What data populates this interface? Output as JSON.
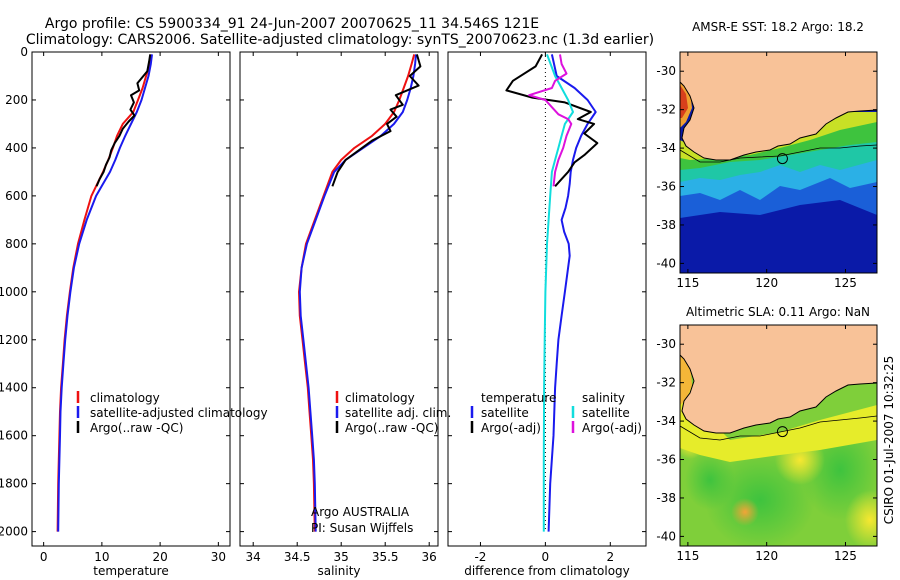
{
  "header": {
    "line1": "Argo profile: CS 5900334_91 24-Jun-2007 20070625_11 34.546S 121E",
    "line2": "Climatology: CARS2006. Satellite-adjusted climatology: synTS_20070623.nc (1.3d earlier)"
  },
  "credit": "CSIRO 01-Jul-2007 10:32:25",
  "colors": {
    "climatology": "#ee1111",
    "satellite": "#1a1aee",
    "argo": "#000000",
    "sal_satellite": "#11dddd",
    "sal_argo": "#dd11dd",
    "land": "#f8c298"
  },
  "chart_data": [
    {
      "type": "line",
      "name": "temperature-profile",
      "xlabel": "temperature",
      "ylabel": "",
      "xlim": [
        -2,
        32
      ],
      "ylim": [
        2060,
        0
      ],
      "xticks": [
        0,
        10,
        20,
        30
      ],
      "yticks": [
        0,
        200,
        400,
        600,
        800,
        1000,
        1200,
        1400,
        1600,
        1800,
        2000
      ],
      "legend": {
        "position": "lower-right",
        "entries": [
          "climatology",
          "satellite-adjusted climatology",
          "Argo(..raw -QC)"
        ]
      },
      "series": [
        {
          "name": "climatology",
          "color": "#ee1111",
          "x": [
            18.4,
            18.2,
            17.6,
            17.0,
            16.2,
            15.4,
            13.6,
            12.6,
            11.9,
            11.1,
            10.2,
            9.2,
            8.2,
            7.0,
            5.9,
            5.1,
            4.5,
            4.0,
            3.6,
            3.3,
            3.0,
            2.8,
            2.7,
            2.6,
            2.5,
            2.4
          ],
          "y": [
            10,
            50,
            100,
            150,
            200,
            250,
            300,
            350,
            400,
            450,
            500,
            550,
            600,
            700,
            800,
            900,
            1000,
            1100,
            1200,
            1300,
            1400,
            1500,
            1600,
            1700,
            1800,
            2000
          ]
        },
        {
          "name": "satellite-adjusted climatology",
          "color": "#1a1aee",
          "x": [
            18.6,
            18.4,
            18.0,
            17.4,
            16.8,
            16.0,
            15.0,
            14.0,
            13.1,
            12.3,
            11.4,
            10.2,
            9.0,
            7.4,
            6.1,
            5.2,
            4.6,
            4.1,
            3.7,
            3.4,
            3.1,
            2.9,
            2.8,
            2.7,
            2.6,
            2.5
          ],
          "y": [
            10,
            50,
            100,
            150,
            200,
            250,
            300,
            350,
            400,
            450,
            500,
            550,
            600,
            700,
            800,
            900,
            1000,
            1100,
            1200,
            1300,
            1400,
            1500,
            1600,
            1700,
            1800,
            2000
          ]
        },
        {
          "name": "Argo(..raw -QC)",
          "color": "#000000",
          "x": [
            18.3,
            18.1,
            17.8,
            16.1,
            16.4,
            15.0,
            15.5,
            14.9,
            15.6,
            14.6,
            13.6,
            13.0,
            12.2,
            11.6,
            11.3,
            10.7,
            10.3,
            9.6,
            9.1
          ],
          "y": [
            10,
            40,
            80,
            130,
            160,
            180,
            210,
            240,
            265,
            290,
            320,
            350,
            380,
            410,
            440,
            470,
            500,
            530,
            560
          ]
        }
      ]
    },
    {
      "type": "line",
      "name": "salinity-profile",
      "xlabel": "salinity",
      "ylabel": "",
      "xlim": [
        33.85,
        36.1
      ],
      "ylim": [
        2060,
        0
      ],
      "xticks": [
        34,
        34.5,
        35,
        35.5,
        36
      ],
      "xtick_labels": [
        "34",
        "34.5",
        "35",
        "35.5",
        "36"
      ],
      "legend": {
        "position": "lower-right",
        "entries": [
          "climatology",
          "satellite adj. clim.",
          "Argo(..raw -QC)"
        ]
      },
      "annotation": [
        "Argo AUSTRALIA",
        "PI: Susan Wijffels"
      ],
      "series": [
        {
          "name": "climatology",
          "color": "#ee1111",
          "x": [
            35.83,
            35.8,
            35.76,
            35.71,
            35.66,
            35.6,
            35.5,
            35.35,
            35.15,
            35.0,
            34.9,
            34.8,
            34.7,
            34.6,
            34.55,
            34.52,
            34.53,
            34.56,
            34.59,
            34.62,
            34.64,
            34.66,
            34.68,
            34.69,
            34.7
          ],
          "y": [
            10,
            50,
            100,
            150,
            200,
            250,
            300,
            350,
            400,
            450,
            500,
            600,
            700,
            800,
            900,
            1000,
            1100,
            1200,
            1300,
            1400,
            1500,
            1600,
            1700,
            1800,
            2000
          ]
        },
        {
          "name": "satellite adj. clim.",
          "color": "#1a1aee",
          "x": [
            35.85,
            35.84,
            35.82,
            35.79,
            35.75,
            35.7,
            35.6,
            35.45,
            35.25,
            35.05,
            34.92,
            34.81,
            34.71,
            34.61,
            34.55,
            34.53,
            34.54,
            34.57,
            34.6,
            34.63,
            34.65,
            34.67,
            34.69,
            34.7,
            34.71
          ],
          "y": [
            10,
            50,
            100,
            150,
            200,
            250,
            300,
            350,
            400,
            450,
            500,
            600,
            700,
            800,
            900,
            1000,
            1100,
            1200,
            1300,
            1400,
            1500,
            1600,
            1700,
            1800,
            2000
          ]
        },
        {
          "name": "Argo(..raw -QC)",
          "color": "#000000",
          "x": [
            35.86,
            35.9,
            35.78,
            35.88,
            35.62,
            35.7,
            35.56,
            35.63,
            35.52,
            35.56,
            35.35,
            35.2,
            35.05,
            34.96,
            34.9
          ],
          "y": [
            10,
            60,
            100,
            140,
            180,
            220,
            240,
            270,
            300,
            330,
            370,
            410,
            450,
            500,
            560
          ]
        }
      ]
    },
    {
      "type": "line",
      "name": "difference-profile",
      "xlabel": "difference from climatology",
      "ylabel": "",
      "xlim": [
        -3,
        3.1
      ],
      "ylim": [
        2060,
        0
      ],
      "xticks": [
        -2,
        0,
        2
      ],
      "legend": {
        "position": "lower-center",
        "columns": [
          {
            "title": "temperature",
            "entries": [
              "satellite",
              "Argo(-adj)"
            ]
          },
          {
            "title": "salinity",
            "entries": [
              "satellite",
              "Argo(-adj)"
            ]
          }
        ]
      },
      "series": [
        {
          "name": "temperature satellite",
          "color": "#1a1aee",
          "x": [
            0.2,
            0.35,
            0.9,
            1.3,
            1.55,
            1.3,
            1.1,
            0.95,
            0.85,
            0.78,
            0.75,
            0.7,
            0.62,
            0.5,
            0.58,
            0.72,
            0.75,
            0.7,
            0.6,
            0.5,
            0.4,
            0.35,
            0.3,
            0.25,
            0.15,
            0.1
          ],
          "y": [
            10,
            100,
            150,
            200,
            250,
            300,
            350,
            400,
            450,
            500,
            550,
            600,
            650,
            700,
            750,
            800,
            850,
            900,
            1000,
            1100,
            1200,
            1300,
            1400,
            1600,
            1800,
            2000
          ]
        },
        {
          "name": "temperature Argo(-adj)",
          "color": "#000000",
          "x": [
            -0.1,
            -0.3,
            -1.0,
            -1.2,
            -0.4,
            0.6,
            1.4,
            1.0,
            1.5,
            1.2,
            1.6,
            1.2,
            0.9,
            0.7,
            0.5,
            0.3
          ],
          "y": [
            10,
            60,
            120,
            160,
            190,
            210,
            250,
            280,
            300,
            340,
            380,
            430,
            460,
            500,
            530,
            560
          ]
        },
        {
          "name": "salinity satellite",
          "color": "#11dddd",
          "x": [
            0.05,
            0.3,
            0.5,
            0.7,
            0.85,
            0.6,
            0.5,
            0.4,
            0.3,
            0.2,
            0.15,
            0.1,
            0.05,
            0.0,
            -0.02,
            -0.04,
            -0.05,
            -0.05
          ],
          "y": [
            10,
            100,
            150,
            200,
            250,
            300,
            350,
            400,
            450,
            500,
            600,
            700,
            800,
            1000,
            1200,
            1400,
            1700,
            2000
          ]
        },
        {
          "name": "salinity Argo(-adj)",
          "color": "#dd11dd",
          "x": [
            0.45,
            0.5,
            0.65,
            0.3,
            0.2,
            -0.5,
            0.0,
            0.2,
            0.4,
            0.7,
            0.8,
            0.65,
            0.55,
            0.4,
            0.3,
            0.25
          ],
          "y": [
            10,
            50,
            90,
            120,
            150,
            180,
            200,
            230,
            260,
            280,
            300,
            350,
            400,
            450,
            500,
            560
          ]
        }
      ]
    },
    {
      "type": "heatmap",
      "name": "amsr-e-sst-map",
      "title": "AMSR-E SST: 18.2 Argo: 18.2",
      "xlim": [
        114.5,
        127
      ],
      "ylim": [
        -40.5,
        -29
      ],
      "xticks": [
        115,
        120,
        125
      ],
      "yticks": [
        -30,
        -32,
        -34,
        -36,
        -38,
        -40
      ],
      "marker": {
        "lon": 121.0,
        "lat": -34.546
      }
    },
    {
      "type": "heatmap",
      "name": "altimetric-sla-map",
      "title": "Altimetric SLA: 0.11 Argo: NaN",
      "xlim": [
        114.5,
        127
      ],
      "ylim": [
        -40.5,
        -29
      ],
      "xticks": [
        115,
        120,
        125
      ],
      "yticks": [
        -30,
        -32,
        -34,
        -36,
        -38,
        -40
      ],
      "marker": {
        "lon": 121.0,
        "lat": -34.546
      }
    }
  ]
}
